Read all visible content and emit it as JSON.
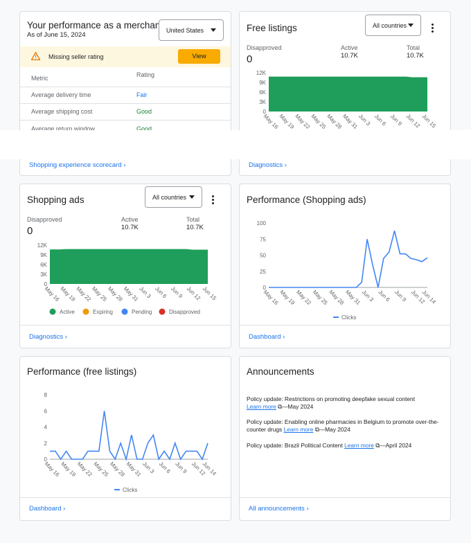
{
  "merchant": {
    "title": "Your performance as a merchant",
    "date": "As of June 15, 2024",
    "country": "United States",
    "alert": "Missing seller rating",
    "button": "View",
    "columns": [
      "Metric",
      "Rating"
    ],
    "rows": [
      [
        "Average delivery time",
        "Fair"
      ],
      [
        "Average shipping cost",
        "Good"
      ],
      [
        "Average return window",
        "Good"
      ]
    ],
    "link": "Shopping experience scorecard"
  },
  "free_listings": {
    "title": "Free listings",
    "country": "All countries",
    "stats": [
      {
        "label": "Disapproved",
        "value": "0"
      },
      {
        "label": "Active",
        "value": "10.7K"
      },
      {
        "label": "Total",
        "value": "10.7K"
      }
    ],
    "chart": {
      "type": "area",
      "categories": [
        "May 16",
        null,
        null,
        "May 19",
        null,
        null,
        "May 22",
        null,
        null,
        "May 25",
        null,
        null,
        "May 28",
        null,
        null,
        "May 31",
        null,
        null,
        "Jun 3",
        null,
        null,
        "Jun 6",
        null,
        null,
        "Jun 9",
        null,
        null,
        "Jun 12",
        null,
        null,
        "Jun 15"
      ],
      "ylim": [
        0,
        12000
      ],
      "yticks": [
        {
          "value": 0,
          "label": "0"
        },
        {
          "value": 3000,
          "label": "3K"
        },
        {
          "value": 6000,
          "label": "6K"
        },
        {
          "value": 9000,
          "label": "9K"
        },
        {
          "value": 12000,
          "label": "12K"
        }
      ],
      "series": [
        {
          "name": "Active",
          "color": "#1e9e5a",
          "values": [
            10800,
            10800,
            10800,
            10800,
            10800,
            10800,
            10800,
            10800,
            10800,
            10800,
            10800,
            10800,
            10800,
            10800,
            10800,
            10800,
            10800,
            10800,
            10800,
            10800,
            10800,
            10800,
            10800,
            10800,
            10800,
            10800,
            10800,
            10600,
            10600,
            10600,
            10600
          ]
        }
      ]
    },
    "link": "Diagnostics"
  },
  "shopping_ads": {
    "title": "Shopping ads",
    "country": "All countries",
    "stats": [
      {
        "label": "Disapproved",
        "value": "0"
      },
      {
        "label": "Active",
        "value": "10.7K"
      },
      {
        "label": "Total",
        "value": "10.7K"
      }
    ],
    "chart": {
      "type": "area",
      "categories": [
        "May 16",
        null,
        null,
        "May 19",
        null,
        null,
        "May 22",
        null,
        null,
        "May 25",
        null,
        null,
        "May 28",
        null,
        null,
        "May 31",
        null,
        null,
        "Jun 3",
        null,
        null,
        "Jun 6",
        null,
        null,
        "Jun 9",
        null,
        null,
        "Jun 12",
        null,
        null,
        "Jun 15"
      ],
      "ylim": [
        0,
        12000
      ],
      "yticks": [
        {
          "value": 0,
          "label": "0"
        },
        {
          "value": 3000,
          "label": "3K"
        },
        {
          "value": 6000,
          "label": "6K"
        },
        {
          "value": 9000,
          "label": "9K"
        },
        {
          "value": 12000,
          "label": "12K"
        }
      ],
      "series": [
        {
          "name": "Active",
          "color": "#1e9e5a",
          "values": [
            10700,
            10700,
            10700,
            10800,
            10800,
            10800,
            10800,
            10800,
            10800,
            10800,
            10800,
            10800,
            10800,
            10800,
            10800,
            10800,
            10800,
            10800,
            10800,
            10800,
            10800,
            10800,
            10800,
            10800,
            10800,
            10800,
            10800,
            10600,
            10600,
            10600,
            10600
          ]
        }
      ]
    },
    "legend": [
      {
        "name": "Active",
        "color": "#1e9e5a"
      },
      {
        "name": "Expiring",
        "color": "#f29900"
      },
      {
        "name": "Pending",
        "color": "#4285f4"
      },
      {
        "name": "Disapproved",
        "color": "#d93025"
      }
    ],
    "link": "Diagnostics"
  },
  "perf_shopping": {
    "title": "Performance (Shopping ads)",
    "chart": {
      "type": "line",
      "categories": [
        "May 16",
        null,
        null,
        "May 19",
        null,
        null,
        "May 22",
        null,
        null,
        "May 25",
        null,
        null,
        "May 28",
        null,
        null,
        "May 31",
        null,
        null,
        "Jun 3",
        null,
        null,
        "Jun 6",
        null,
        null,
        "Jun 9",
        null,
        null,
        "Jun 12",
        null,
        "Jun 14"
      ],
      "ylim": [
        0,
        100
      ],
      "yticks": [
        0,
        25,
        50,
        75,
        100
      ],
      "series": [
        {
          "name": "Clicks",
          "color": "#4285f4",
          "values": [
            0,
            0,
            0,
            0,
            0,
            0,
            0,
            0,
            0,
            0,
            0,
            0,
            0,
            0,
            0,
            0,
            0,
            8,
            75,
            35,
            0,
            45,
            55,
            88,
            52,
            52,
            45,
            43,
            40,
            46
          ]
        }
      ]
    },
    "link": "Dashboard"
  },
  "perf_free": {
    "title": "Performance (free listings)",
    "chart": {
      "type": "line",
      "categories": [
        "May 16",
        null,
        null,
        "May 19",
        null,
        null,
        "May 22",
        null,
        null,
        "May 25",
        null,
        null,
        "May 28",
        null,
        null,
        "May 31",
        null,
        null,
        "Jun 3",
        null,
        null,
        "Jun 6",
        null,
        null,
        "Jun 9",
        null,
        null,
        "Jun 12",
        null,
        "Jun 14"
      ],
      "ylim": [
        0,
        8
      ],
      "yticks": [
        0,
        2,
        4,
        6,
        8
      ],
      "series": [
        {
          "name": "Clicks",
          "color": "#4285f4",
          "values": [
            1,
            1,
            0,
            1,
            0,
            0,
            0,
            1,
            1,
            1,
            6,
            1,
            0,
            2,
            0,
            3,
            0,
            0,
            2,
            3,
            0,
            1,
            0,
            2,
            0,
            1,
            1,
            1,
            0,
            2
          ]
        }
      ]
    },
    "link": "Dashboard"
  },
  "announcements": {
    "title": "Announcements",
    "items": [
      {
        "text": "Policy update: Restrictions on promoting deepfake sexual content",
        "link": "Learn more",
        "date": "—May 2024"
      },
      {
        "text": "Policy update: Enabling online pharmacies in Belgium to promote over-the-counter drugs",
        "link": "Learn more",
        "date": "—May 2024"
      },
      {
        "text": "Policy update: Brazil Political Content",
        "link": "Learn more",
        "date": "—April 2024"
      }
    ],
    "link": "All announcements"
  }
}
